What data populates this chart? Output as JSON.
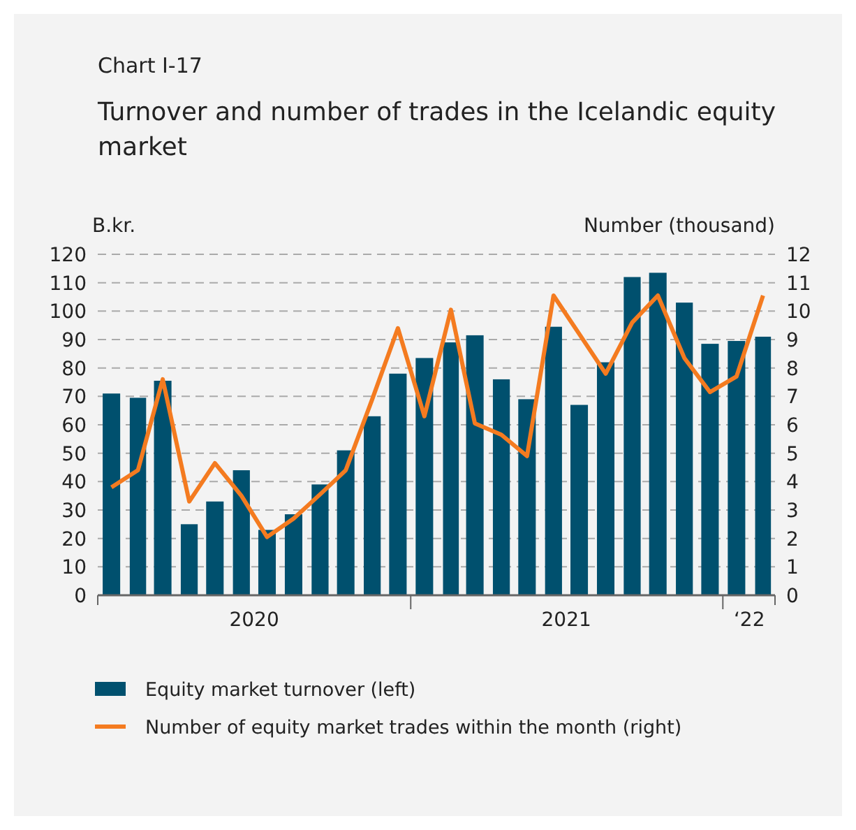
{
  "chart_data": {
    "type": "bar",
    "subtitle": "Chart I-17",
    "title": "Turnover and number of trades in the Icelandic equity market",
    "ylabel": "B.kr.",
    "y2label": "Number (thousand)",
    "x": [
      "2020-01",
      "2020-02",
      "2020-03",
      "2020-04",
      "2020-05",
      "2020-06",
      "2020-07",
      "2020-08",
      "2020-09",
      "2020-10",
      "2020-11",
      "2020-12",
      "2021-01",
      "2021-02",
      "2021-03",
      "2021-04",
      "2021-05",
      "2021-06",
      "2021-07",
      "2021-08",
      "2021-09",
      "2021-10",
      "2021-11",
      "2021-12",
      "2022-01",
      "2022-02"
    ],
    "xlim": [
      "2019-12-16",
      "2022-02-15"
    ],
    "xticks": [
      {
        "value": "2020-06-16",
        "label": "2020"
      },
      {
        "value": "2020-12-16",
        "label": null
      },
      {
        "value": "2021-06-16",
        "label": "2021"
      },
      {
        "value": "2021-12-16",
        "label": null
      },
      {
        "value": "2022-01-16",
        "label": "‘22"
      }
    ],
    "ylim": [
      0,
      120
    ],
    "yticks": [
      0,
      10,
      20,
      30,
      40,
      50,
      60,
      70,
      80,
      90,
      100,
      110,
      120
    ],
    "y2lim": [
      0,
      12
    ],
    "y2ticks": [
      0,
      1,
      2,
      3,
      4,
      5,
      6,
      7,
      8,
      9,
      10,
      11,
      12
    ],
    "grid": "y",
    "legend": "bottom",
    "series": [
      {
        "name": "Equity market turnover (left)",
        "color": "#00506e",
        "values": [
          71,
          69.5,
          75.5,
          25,
          33,
          44,
          23,
          28.5,
          39,
          51,
          63,
          78,
          83.5,
          89,
          91.5,
          76,
          69,
          94.5,
          67,
          82,
          112,
          113.5,
          103,
          88.5,
          89.5,
          91
        ]
      },
      {
        "name": "Number of equity market trades within the month (right)",
        "type": "line",
        "axis": "y2",
        "color": "#f47b20",
        "line_style": "solid",
        "marker": "none",
        "values": [
          3.8,
          4.4,
          7.6,
          3.3,
          4.65,
          3.5,
          2.05,
          2.7,
          3.55,
          4.4,
          6.9,
          9.4,
          6.3,
          10.05,
          6.05,
          5.65,
          4.9,
          10.55,
          9.2,
          7.8,
          9.6,
          10.55,
          8.35,
          7.15,
          7.7,
          10.55
        ]
      }
    ]
  }
}
